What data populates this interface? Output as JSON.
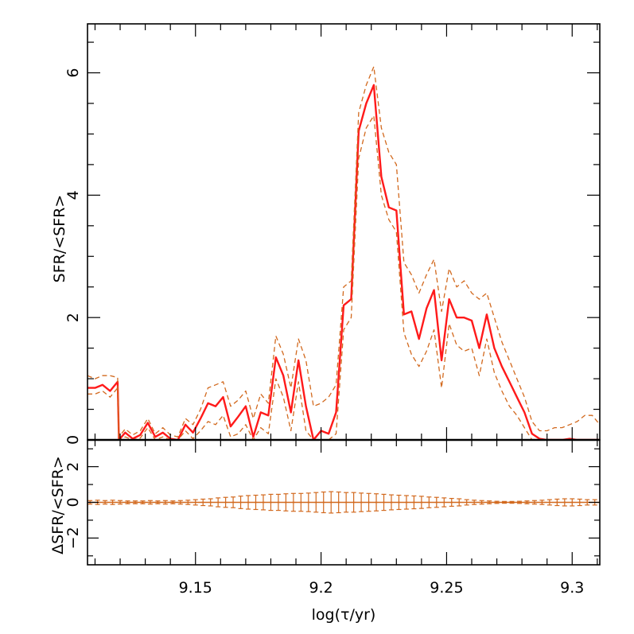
{
  "chart_data": [
    {
      "panel": "main",
      "type": "line",
      "title": "",
      "xlabel": "log(τ/yr)",
      "ylabel": "SFR/<SFR>",
      "xlim": [
        9.107,
        9.311
      ],
      "ylim": [
        0,
        6.8
      ],
      "yticks": [
        0,
        2,
        4,
        6
      ],
      "yticklabels": [
        "0",
        "2",
        "4",
        "6"
      ],
      "colors": {
        "best": "#ff1a1a",
        "bounds": "#d2691e"
      },
      "series": [
        {
          "name": "best",
          "style": "solid",
          "x": [
            9.107,
            9.11,
            9.113,
            9.116,
            9.119,
            9.1195,
            9.122,
            9.125,
            9.128,
            9.131,
            9.134,
            9.137,
            9.14,
            9.143,
            9.146,
            9.149,
            9.152,
            9.155,
            9.158,
            9.161,
            9.164,
            9.167,
            9.17,
            9.173,
            9.176,
            9.179,
            9.182,
            9.185,
            9.188,
            9.191,
            9.194,
            9.197,
            9.2,
            9.203,
            9.206,
            9.209,
            9.212,
            9.215,
            9.218,
            9.221,
            9.224,
            9.227,
            9.23,
            9.233,
            9.236,
            9.239,
            9.242,
            9.245,
            9.248,
            9.251,
            9.254,
            9.257,
            9.26,
            9.263,
            9.266,
            9.269,
            9.272,
            9.275,
            9.278,
            9.281,
            9.284,
            9.287,
            9.29,
            9.293,
            9.296,
            9.299,
            9.302,
            9.305,
            9.308,
            9.311
          ],
          "y": [
            0.85,
            0.85,
            0.9,
            0.8,
            0.95,
            0.0,
            0.12,
            0.02,
            0.08,
            0.28,
            0.05,
            0.12,
            0.02,
            0.0,
            0.25,
            0.12,
            0.35,
            0.6,
            0.55,
            0.7,
            0.22,
            0.38,
            0.55,
            0.05,
            0.45,
            0.4,
            1.35,
            1.05,
            0.45,
            1.3,
            0.55,
            0.0,
            0.15,
            0.1,
            0.45,
            2.2,
            2.3,
            5.05,
            5.5,
            5.8,
            4.3,
            3.8,
            3.75,
            2.05,
            2.1,
            1.65,
            2.15,
            2.45,
            1.3,
            2.3,
            2.0,
            2.0,
            1.95,
            1.5,
            2.05,
            1.5,
            1.2,
            0.95,
            0.7,
            0.45,
            0.1,
            0.02,
            0.0,
            0.0,
            0.0,
            0.02,
            0.0,
            0.0,
            0.0,
            0.0
          ]
        },
        {
          "name": "upper",
          "style": "dashed",
          "x": [
            9.107,
            9.11,
            9.113,
            9.116,
            9.119,
            9.1195,
            9.122,
            9.125,
            9.128,
            9.131,
            9.134,
            9.137,
            9.14,
            9.143,
            9.146,
            9.149,
            9.152,
            9.155,
            9.158,
            9.161,
            9.164,
            9.167,
            9.17,
            9.173,
            9.176,
            9.179,
            9.182,
            9.185,
            9.188,
            9.191,
            9.194,
            9.197,
            9.2,
            9.203,
            9.206,
            9.209,
            9.212,
            9.215,
            9.218,
            9.221,
            9.224,
            9.227,
            9.23,
            9.233,
            9.236,
            9.239,
            9.242,
            9.245,
            9.248,
            9.251,
            9.254,
            9.257,
            9.26,
            9.263,
            9.266,
            9.269,
            9.272,
            9.275,
            9.278,
            9.281,
            9.284,
            9.287,
            9.29,
            9.293,
            9.296,
            9.299,
            9.302,
            9.305,
            9.308,
            9.311
          ],
          "y": [
            1.05,
            1.0,
            1.05,
            1.05,
            1.02,
            0.05,
            0.18,
            0.08,
            0.15,
            0.35,
            0.1,
            0.2,
            0.08,
            0.05,
            0.35,
            0.25,
            0.5,
            0.85,
            0.9,
            0.95,
            0.55,
            0.65,
            0.8,
            0.35,
            0.75,
            0.6,
            1.7,
            1.4,
            0.85,
            1.65,
            1.3,
            0.55,
            0.6,
            0.7,
            0.9,
            2.5,
            2.6,
            5.35,
            5.8,
            6.1,
            5.1,
            4.7,
            4.5,
            2.9,
            2.7,
            2.4,
            2.7,
            2.95,
            2.1,
            2.8,
            2.5,
            2.6,
            2.4,
            2.3,
            2.4,
            2.0,
            1.6,
            1.3,
            1.0,
            0.7,
            0.3,
            0.15,
            0.15,
            0.2,
            0.2,
            0.25,
            0.3,
            0.4,
            0.4,
            0.25
          ]
        },
        {
          "name": "lower",
          "style": "dashed",
          "x": [
            9.107,
            9.11,
            9.113,
            9.116,
            9.119,
            9.1195,
            9.122,
            9.125,
            9.128,
            9.131,
            9.134,
            9.137,
            9.14,
            9.143,
            9.146,
            9.149,
            9.152,
            9.155,
            9.158,
            9.161,
            9.164,
            9.167,
            9.17,
            9.173,
            9.176,
            9.179,
            9.182,
            9.185,
            9.188,
            9.191,
            9.194,
            9.197,
            9.2,
            9.203,
            9.206,
            9.209,
            9.212,
            9.215,
            9.218,
            9.221,
            9.224,
            9.227,
            9.23,
            9.233,
            9.236,
            9.239,
            9.242,
            9.245,
            9.248,
            9.251,
            9.254,
            9.257,
            9.26,
            9.263,
            9.266,
            9.269,
            9.272,
            9.275,
            9.278,
            9.281,
            9.284,
            9.287,
            9.29,
            9.293,
            9.296,
            9.299,
            9.302,
            9.305,
            9.308,
            9.311
          ],
          "y": [
            0.75,
            0.75,
            0.8,
            0.7,
            0.85,
            0.0,
            0.05,
            0.0,
            0.03,
            0.2,
            0.0,
            0.05,
            0.0,
            0.0,
            0.15,
            0.02,
            0.15,
            0.3,
            0.25,
            0.4,
            0.05,
            0.1,
            0.25,
            0.0,
            0.2,
            0.1,
            1.0,
            0.7,
            0.15,
            0.95,
            0.15,
            0.0,
            0.0,
            0.0,
            0.1,
            1.8,
            2.0,
            4.6,
            5.1,
            5.3,
            4.0,
            3.6,
            3.4,
            1.75,
            1.4,
            1.2,
            1.45,
            1.8,
            0.85,
            1.9,
            1.55,
            1.45,
            1.5,
            1.05,
            1.65,
            1.1,
            0.8,
            0.55,
            0.4,
            0.2,
            0.0,
            0.0,
            0.0,
            0.0,
            0.0,
            0.0,
            0.0,
            0.0,
            0.0,
            0.0
          ]
        }
      ]
    },
    {
      "panel": "residual",
      "type": "scatter",
      "xlabel": "log(τ/yr)",
      "ylabel": "ΔSFR/<SFR>",
      "xlim": [
        9.107,
        9.311
      ],
      "ylim": [
        -3.5,
        3.5
      ],
      "yticks": [
        -2,
        0,
        2
      ],
      "yticklabels": [
        "−2",
        "0",
        "2"
      ],
      "xticks": [
        9.15,
        9.2,
        9.25,
        9.3
      ],
      "xticklabels": [
        "9.15",
        "9.2",
        "9.25",
        "9.3"
      ],
      "color": "#d2691e",
      "x": [
        9.108,
        9.111,
        9.114,
        9.117,
        9.12,
        9.123,
        9.126,
        9.129,
        9.132,
        9.135,
        9.138,
        9.141,
        9.144,
        9.147,
        9.15,
        9.153,
        9.156,
        9.159,
        9.162,
        9.165,
        9.168,
        9.171,
        9.174,
        9.177,
        9.18,
        9.183,
        9.186,
        9.189,
        9.192,
        9.195,
        9.198,
        9.201,
        9.204,
        9.207,
        9.21,
        9.213,
        9.216,
        9.219,
        9.222,
        9.225,
        9.228,
        9.231,
        9.234,
        9.237,
        9.24,
        9.243,
        9.246,
        9.249,
        9.252,
        9.255,
        9.258,
        9.261,
        9.264,
        9.267,
        9.27,
        9.273,
        9.276,
        9.279,
        9.282,
        9.285,
        9.288,
        9.291,
        9.294,
        9.297,
        9.3,
        9.303,
        9.306,
        9.309
      ],
      "y": [
        0,
        0,
        0,
        0,
        0,
        0,
        0,
        0,
        0,
        0,
        0,
        0,
        0,
        0,
        0,
        0,
        0,
        0,
        0,
        0,
        0,
        0,
        0,
        0,
        0,
        0,
        0,
        0,
        0,
        0,
        0,
        0,
        0,
        0,
        0,
        0,
        0,
        0,
        0,
        0,
        0,
        0,
        0,
        0,
        0,
        0,
        0,
        0,
        0,
        0,
        0,
        0,
        0,
        0,
        0,
        0,
        0,
        0,
        0,
        0,
        0,
        0,
        0,
        0,
        0,
        0,
        0,
        0
      ],
      "err": [
        0.1,
        0.12,
        0.1,
        0.12,
        0.1,
        0.08,
        0.08,
        0.08,
        0.1,
        0.08,
        0.1,
        0.08,
        0.1,
        0.12,
        0.15,
        0.18,
        0.2,
        0.25,
        0.28,
        0.3,
        0.35,
        0.38,
        0.4,
        0.42,
        0.45,
        0.45,
        0.48,
        0.5,
        0.5,
        0.52,
        0.55,
        0.58,
        0.6,
        0.58,
        0.55,
        0.55,
        0.52,
        0.5,
        0.48,
        0.45,
        0.42,
        0.4,
        0.38,
        0.36,
        0.34,
        0.3,
        0.28,
        0.25,
        0.22,
        0.2,
        0.15,
        0.12,
        0.1,
        0.08,
        0.06,
        0.05,
        0.05,
        0.06,
        0.08,
        0.1,
        0.12,
        0.15,
        0.18,
        0.2,
        0.2,
        0.18,
        0.15,
        0.15
      ]
    }
  ]
}
